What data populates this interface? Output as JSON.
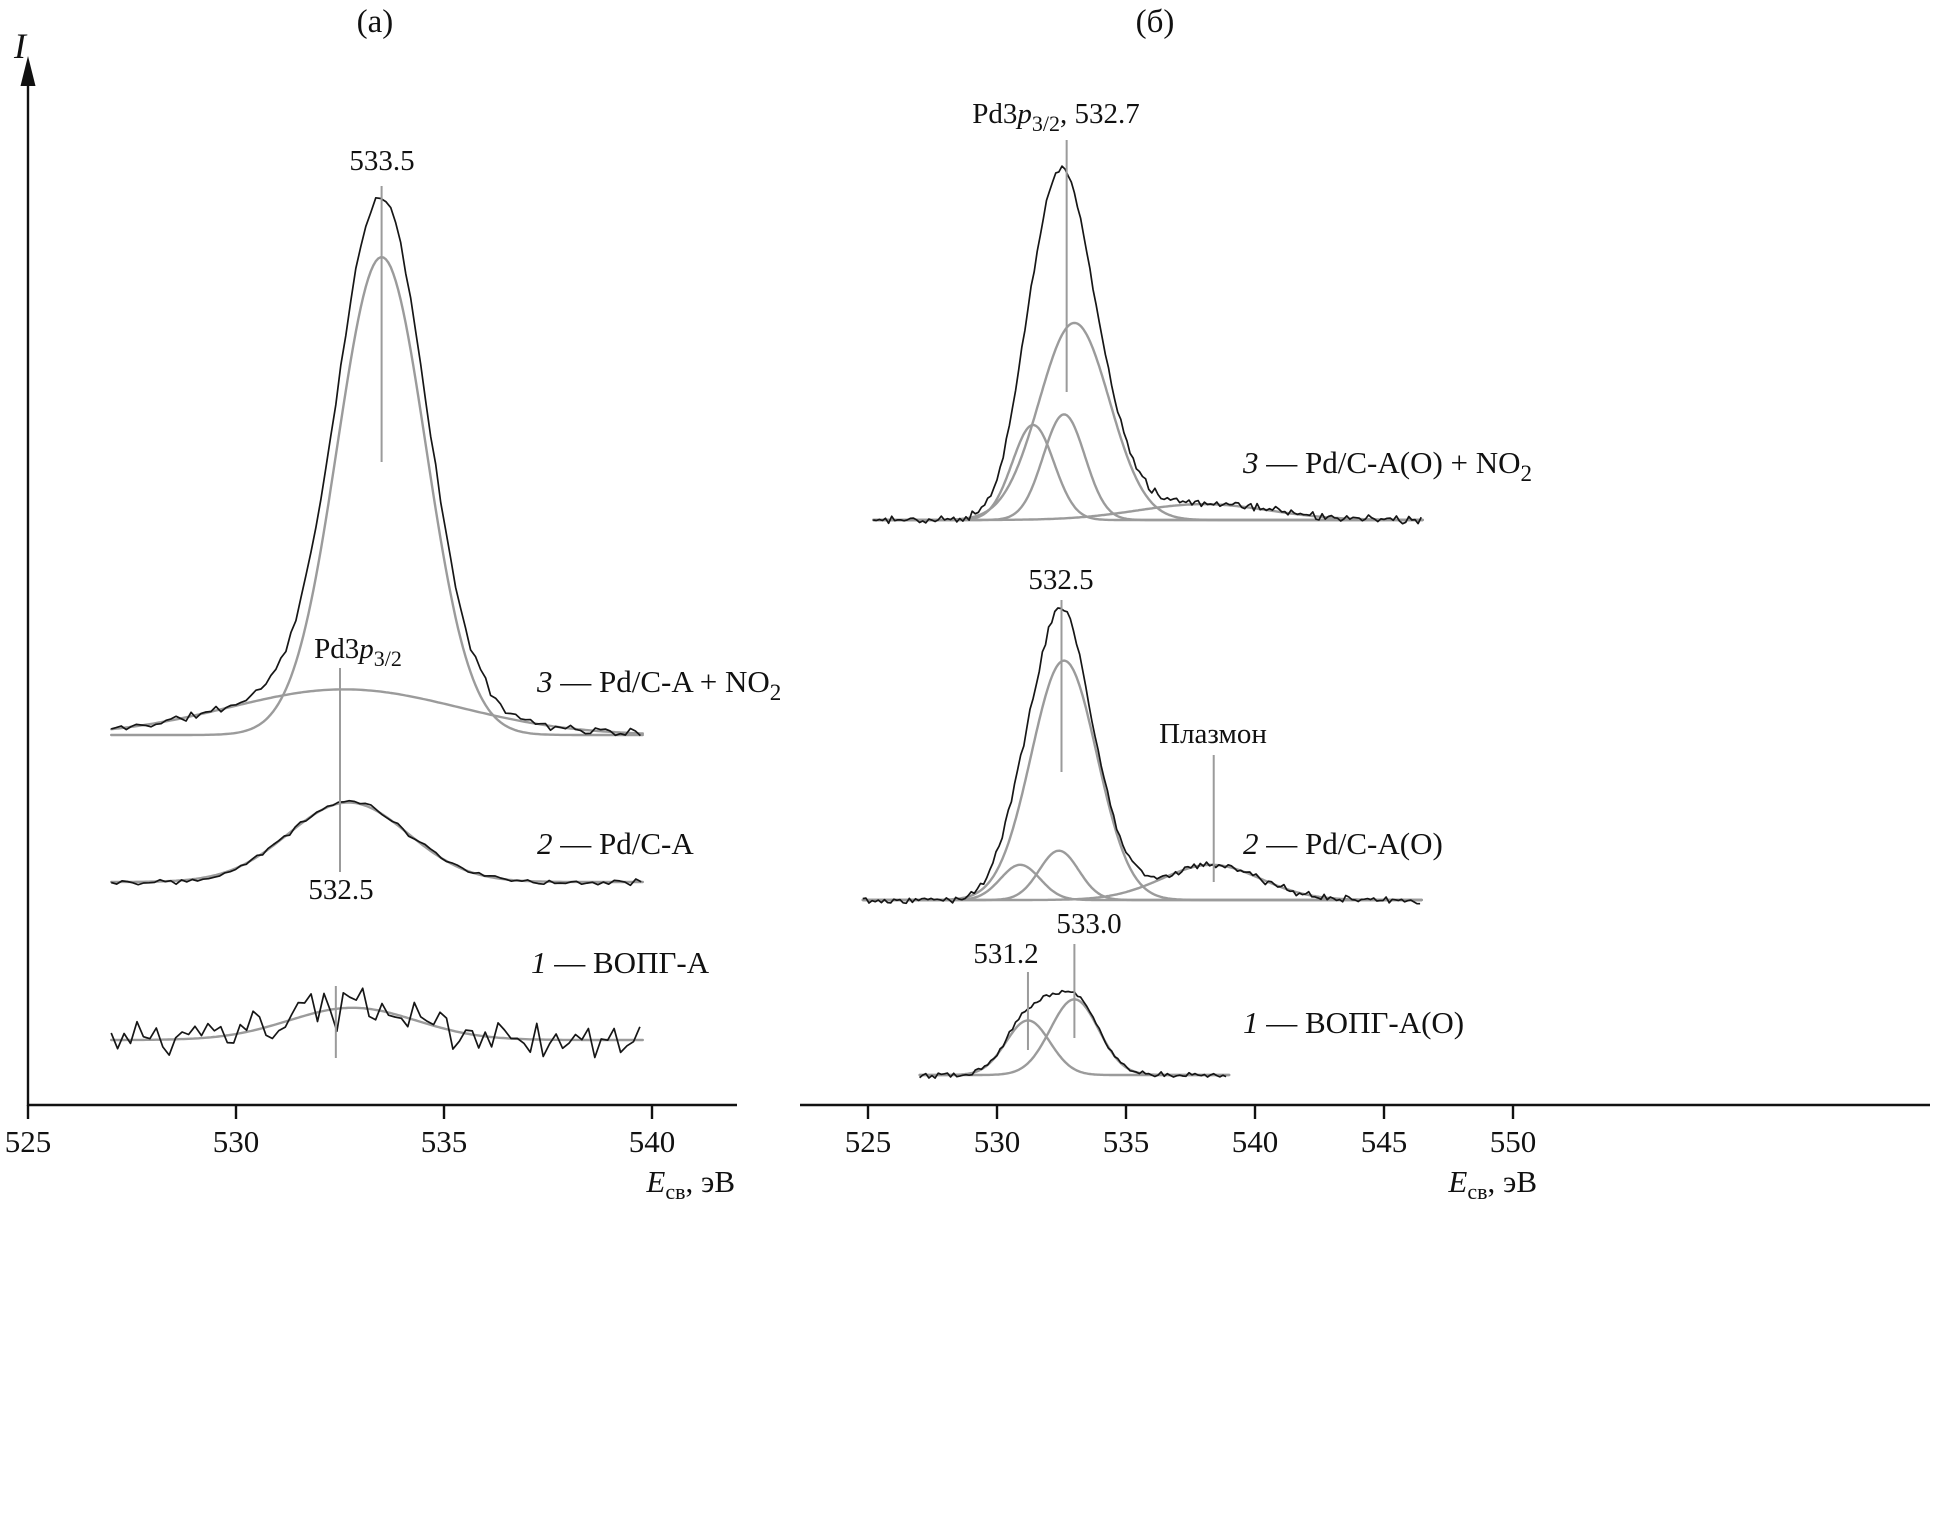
{
  "figure": {
    "panel_a": {
      "title": "(а)"
    },
    "panel_b": {
      "title": "(б)"
    },
    "y_axis_label": "I",
    "x_axis_label": {
      "symbol": "E",
      "sub": "св",
      "rest": ", эВ"
    }
  },
  "chart_data": [
    {
      "type": "line",
      "panel_label": "(а)",
      "xlabel": "Eсв, эВ",
      "ylabel": "I",
      "xlim": [
        525,
        542
      ],
      "x_ticks": [
        525,
        530,
        535,
        540
      ],
      "grid": false,
      "series": [
        {
          "id": "a3",
          "name": {
            "num": "3",
            "text": " — Pd/C-A + NO",
            "sub": "2"
          },
          "x_range": [
            527.0,
            539.8
          ],
          "envelope": [
            {
              "center": 533.5,
              "amp": 0.92,
              "fwhm": 2.5
            },
            {
              "center": 532.6,
              "amp": 0.085,
              "fwhm": 6.5
            }
          ],
          "components": [
            {
              "center": 533.5,
              "amp": 0.89,
              "fwhm": 2.5
            },
            {
              "center": 532.6,
              "amp": 0.085,
              "fwhm": 6.5
            }
          ]
        },
        {
          "id": "a2",
          "name": {
            "num": "2",
            "text": " — Pd/C-A",
            "sub": ""
          },
          "x_range": [
            527.0,
            539.8
          ],
          "envelope": [
            {
              "center": 532.7,
              "amp": 0.15,
              "fwhm": 3.4
            }
          ],
          "components": [
            {
              "center": 532.7,
              "amp": 0.148,
              "fwhm": 3.4
            }
          ]
        },
        {
          "id": "a1",
          "name": {
            "num": "1",
            "text": " — ВОПГ-А",
            "sub": ""
          },
          "x_range": [
            527.0,
            539.8
          ],
          "envelope": [
            {
              "center": 532.8,
              "amp": 0.06,
              "fwhm": 3.6
            }
          ],
          "components": [
            {
              "center": 532.8,
              "amp": 0.06,
              "fwhm": 3.6
            }
          ]
        }
      ],
      "annotations": [
        {
          "id": "a_533_5",
          "label": "533.5",
          "ev": 533.5
        },
        {
          "id": "a_pd3p",
          "ev": 532.5,
          "label_parts": {
            "pre": "Pd3",
            "p": "p",
            "sub": "3/2"
          }
        },
        {
          "id": "a_532_5",
          "label": "532.5",
          "ev": 532.5
        },
        {
          "id": "a_hump",
          "label": "",
          "ev": 532.4
        }
      ]
    },
    {
      "type": "line",
      "panel_label": "(б)",
      "xlabel": "Eсв, эВ",
      "ylabel": "I",
      "xlim": [
        525,
        550
      ],
      "x_ticks": [
        525,
        530,
        535,
        540,
        545,
        550
      ],
      "grid": false,
      "series": [
        {
          "id": "b3",
          "name": {
            "num": "3",
            "text": " — Pd/C-A(O) + NO",
            "sub": "2"
          },
          "x_range": [
            525.2,
            546.5
          ],
          "envelope": [
            {
              "center": 533.0,
              "amp": 0.56,
              "fwhm": 3.2
            },
            {
              "center": 531.4,
              "amp": 0.27,
              "fwhm": 1.9
            },
            {
              "center": 532.6,
              "amp": 0.3,
              "fwhm": 1.9
            },
            {
              "center": 538.0,
              "amp": 0.045,
              "fwhm": 6.0
            }
          ],
          "components": [
            {
              "center": 533.0,
              "amp": 0.56,
              "fwhm": 3.2
            },
            {
              "center": 531.4,
              "amp": 0.27,
              "fwhm": 1.9
            },
            {
              "center": 532.6,
              "amp": 0.3,
              "fwhm": 1.9
            },
            {
              "center": 538.0,
              "amp": 0.045,
              "fwhm": 6.0
            }
          ]
        },
        {
          "id": "b2",
          "name": {
            "num": "2",
            "text": " — Pd/C-A(O)",
            "sub": ""
          },
          "x_range": [
            524.8,
            546.5
          ],
          "envelope": [
            {
              "center": 532.6,
              "amp": 0.68,
              "fwhm": 3.0
            },
            {
              "center": 530.9,
              "amp": 0.1,
              "fwhm": 1.8
            },
            {
              "center": 532.4,
              "amp": 0.14,
              "fwhm": 1.8
            },
            {
              "center": 538.3,
              "amp": 0.1,
              "fwhm": 4.5
            }
          ],
          "components": [
            {
              "center": 532.6,
              "amp": 0.68,
              "fwhm": 3.0
            },
            {
              "center": 530.9,
              "amp": 0.1,
              "fwhm": 1.8
            },
            {
              "center": 532.4,
              "amp": 0.14,
              "fwhm": 1.8
            },
            {
              "center": 538.3,
              "amp": 0.1,
              "fwhm": 4.5
            }
          ]
        },
        {
          "id": "b1",
          "name": {
            "num": "1",
            "text": " — ВОПГ-А(O)",
            "sub": ""
          },
          "x_range": [
            527.0,
            539.0
          ],
          "envelope": [
            {
              "center": 531.2,
              "amp": 0.155,
              "fwhm": 2.0
            },
            {
              "center": 533.0,
              "amp": 0.215,
              "fwhm": 2.2
            }
          ],
          "components": [
            {
              "center": 531.2,
              "amp": 0.155,
              "fwhm": 2.0
            },
            {
              "center": 533.0,
              "amp": 0.215,
              "fwhm": 2.2
            }
          ]
        }
      ],
      "annotations": [
        {
          "id": "b_top",
          "ev": 532.7,
          "label_parts": {
            "pre": "Pd3",
            "p": "p",
            "sub": "3/2",
            "rest": ", 532.7"
          }
        },
        {
          "id": "b_532_5",
          "label": "532.5",
          "ev": 532.5
        },
        {
          "id": "b_plasmon",
          "label": "Плазмон",
          "ev": 538.4
        },
        {
          "id": "b_533_0",
          "label": "533.0",
          "ev": 533.0
        },
        {
          "id": "b_531_2",
          "label": "531.2",
          "ev": 531.2
        }
      ]
    }
  ]
}
